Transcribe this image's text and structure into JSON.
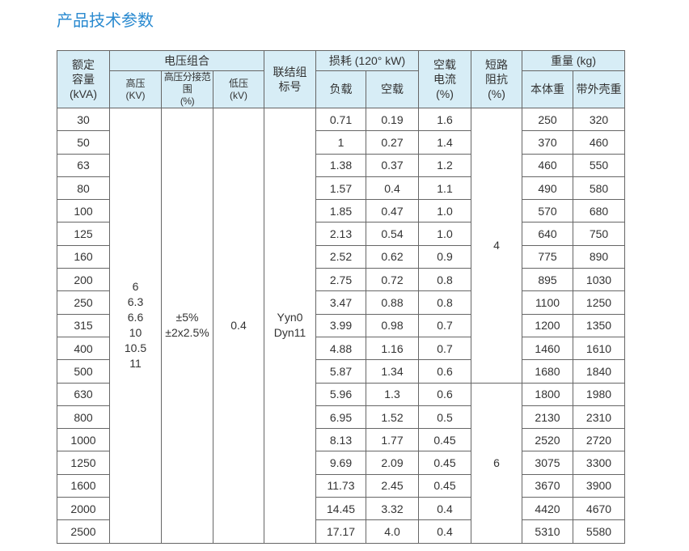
{
  "title": "产品技术参数",
  "table": {
    "head": {
      "capacity": [
        "额定",
        "容量",
        "(kVA)"
      ],
      "voltage": "电压组合",
      "high_voltage": [
        "高压",
        "(KV)"
      ],
      "tap_range": [
        "高压分接范围",
        "(%)"
      ],
      "low_voltage": [
        "低压",
        "(kV)"
      ],
      "connection": [
        "联结组",
        "标号"
      ],
      "loss": "损耗 (120° kW)",
      "load_loss": "负载",
      "noload_loss": "空载",
      "noload_current": [
        "空载",
        "电流",
        "(%)"
      ],
      "impedance": [
        "短路",
        "阻抗",
        "(%)"
      ],
      "weight": "重量 (kg)",
      "body_weight": "本体重",
      "case_weight": "带外壳重"
    },
    "high_voltage": [
      "6",
      "6.3",
      "6.6",
      "10",
      "10.5",
      "11"
    ],
    "tap_range": [
      "±5%",
      "±2x2.5%"
    ],
    "low_voltage": "0.4",
    "connection": [
      "Yyn0",
      "Dyn11"
    ],
    "impedance": [
      "4",
      "6"
    ],
    "rows": [
      [
        "30",
        "0.71",
        "0.19",
        "1.6",
        "250",
        "320"
      ],
      [
        "50",
        "1",
        "0.27",
        "1.4",
        "370",
        "460"
      ],
      [
        "63",
        "1.38",
        "0.37",
        "1.2",
        "460",
        "550"
      ],
      [
        "80",
        "1.57",
        "0.4",
        "1.1",
        "490",
        "580"
      ],
      [
        "100",
        "1.85",
        "0.47",
        "1.0",
        "570",
        "680"
      ],
      [
        "125",
        "2.13",
        "0.54",
        "1.0",
        "640",
        "750"
      ],
      [
        "160",
        "2.52",
        "0.62",
        "0.9",
        "775",
        "890"
      ],
      [
        "200",
        "2.75",
        "0.72",
        "0.8",
        "895",
        "1030"
      ],
      [
        "250",
        "3.47",
        "0.88",
        "0.8",
        "1100",
        "1250"
      ],
      [
        "315",
        "3.99",
        "0.98",
        "0.7",
        "1200",
        "1350"
      ],
      [
        "400",
        "4.88",
        "1.16",
        "0.7",
        "1460",
        "1610"
      ],
      [
        "500",
        "5.87",
        "1.34",
        "0.6",
        "1680",
        "1840"
      ],
      [
        "630",
        "5.96",
        "1.3",
        "0.6",
        "1800",
        "1980"
      ],
      [
        "800",
        "6.95",
        "1.52",
        "0.5",
        "2130",
        "2310"
      ],
      [
        "1000",
        "8.13",
        "1.77",
        "0.45",
        "2520",
        "2720"
      ],
      [
        "1250",
        "9.69",
        "2.09",
        "0.45",
        "3075",
        "3300"
      ],
      [
        "1600",
        "11.73",
        "2.45",
        "0.45",
        "3670",
        "3900"
      ],
      [
        "2000",
        "14.45",
        "3.32",
        "0.4",
        "4420",
        "4670"
      ],
      [
        "2500",
        "17.17",
        "4.0",
        "0.4",
        "5310",
        "5580"
      ]
    ]
  }
}
